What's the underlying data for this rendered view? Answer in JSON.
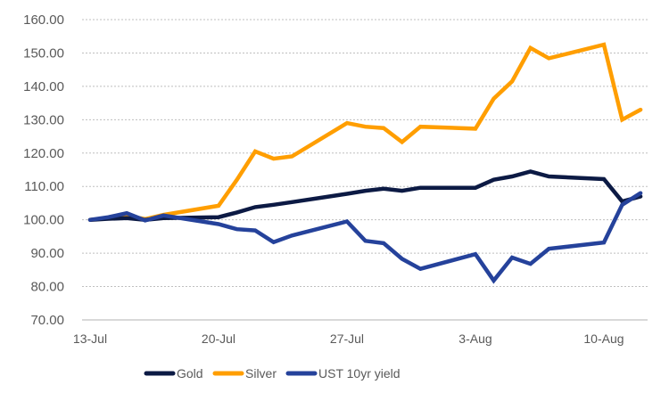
{
  "chart_data": {
    "type": "line",
    "title": "",
    "xlabel": "",
    "ylabel": "",
    "ylim": [
      70,
      160
    ],
    "yticks": [
      "70.00",
      "80.00",
      "90.00",
      "100.00",
      "110.00",
      "120.00",
      "130.00",
      "140.00",
      "150.00",
      "160.00"
    ],
    "ytick_values": [
      70,
      80,
      90,
      100,
      110,
      120,
      130,
      140,
      150,
      160
    ],
    "xticks": [
      {
        "label": "13-Jul",
        "day": 0
      },
      {
        "label": "20-Jul",
        "day": 7
      },
      {
        "label": "27-Jul",
        "day": 14
      },
      {
        "label": "3-Aug",
        "day": 21
      },
      {
        "label": "10-Aug",
        "day": 28
      }
    ],
    "x_days": [
      0,
      1,
      2,
      3,
      4,
      7,
      8,
      9,
      10,
      11,
      14,
      15,
      16,
      17,
      18,
      21,
      22,
      23,
      24,
      25,
      28,
      29,
      30
    ],
    "grid": true,
    "legend_position": "bottom",
    "series": [
      {
        "name": "Gold",
        "color": "#0c1a44",
        "values": [
          100,
          100.3,
          100.5,
          100,
          100.5,
          100.8,
          102.2,
          103.8,
          104.5,
          105.3,
          107.8,
          108.7,
          109.3,
          108.7,
          109.6,
          109.6,
          112,
          113,
          114.5,
          113,
          112.2,
          105.5,
          107
        ]
      },
      {
        "name": "Silver",
        "color": "#ff9e00",
        "values": [
          100,
          100.5,
          101.2,
          100.2,
          101.5,
          104.2,
          112,
          120.5,
          118.3,
          119,
          129,
          127.9,
          127.5,
          123.3,
          127.9,
          127.3,
          136.3,
          141.5,
          151.5,
          148.4,
          152.5,
          130,
          133
        ]
      },
      {
        "name": "UST 10yr yield",
        "color": "#25429b",
        "values": [
          100,
          100.8,
          102,
          99.8,
          101.3,
          98.7,
          97.2,
          96.8,
          93.3,
          95.3,
          99.5,
          93.7,
          93,
          88.3,
          85.3,
          89.7,
          81.8,
          88.7,
          86.8,
          91.3,
          93.2,
          104.5,
          108
        ]
      }
    ]
  }
}
